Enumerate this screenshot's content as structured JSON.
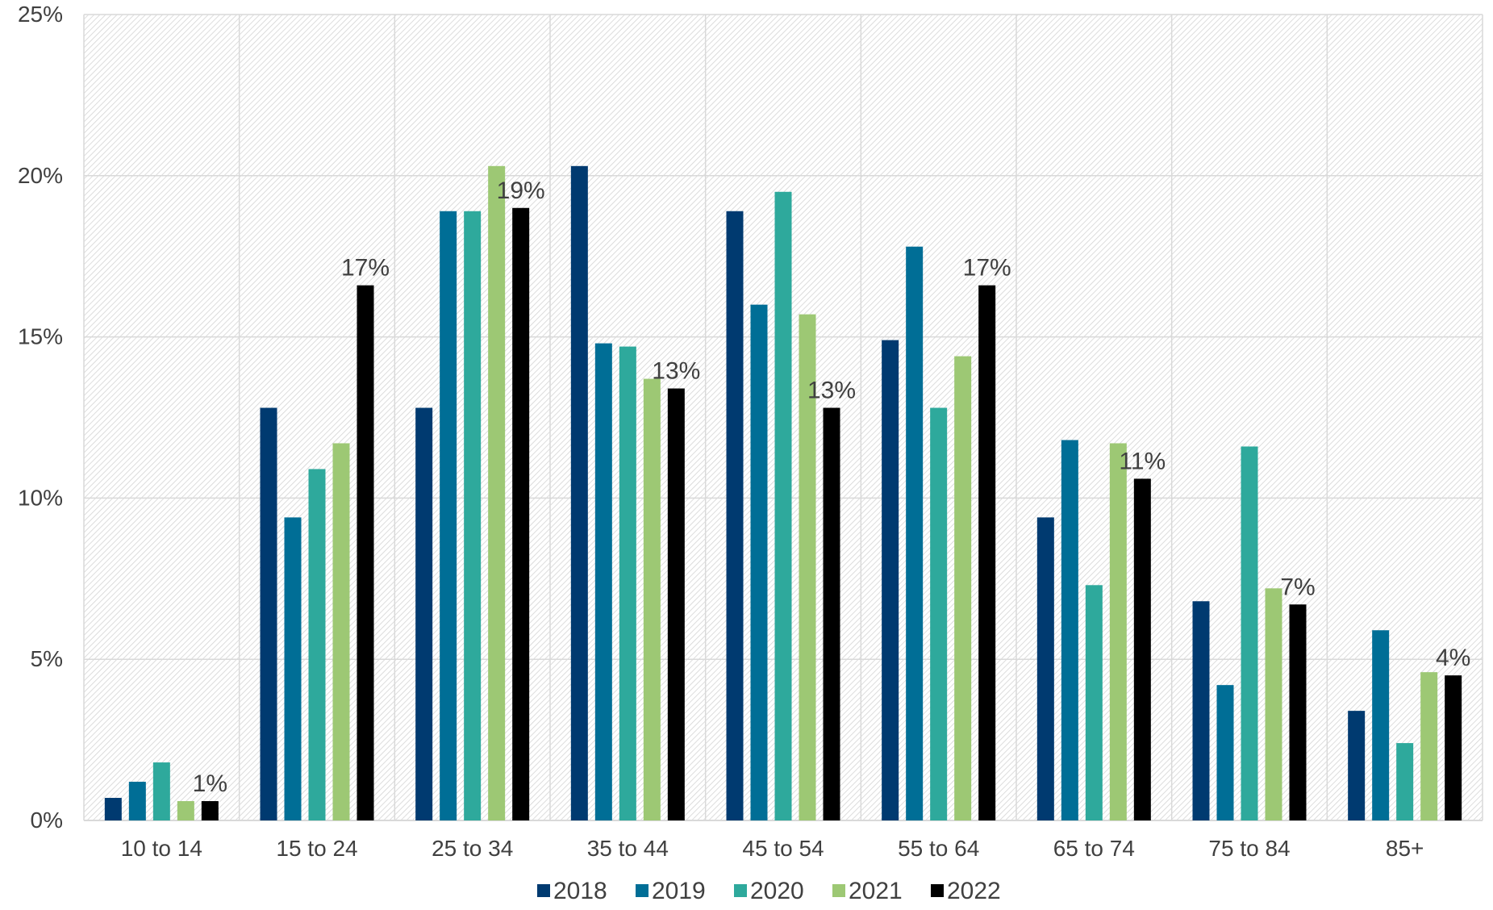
{
  "chart_data": {
    "type": "bar",
    "title": "",
    "xlabel": "",
    "ylabel": "",
    "ylim": [
      0,
      25
    ],
    "y_ticks": [
      "0%",
      "5%",
      "10%",
      "15%",
      "20%",
      "25%"
    ],
    "y_tick_values": [
      0,
      5,
      10,
      15,
      20,
      25
    ],
    "grid": true,
    "legend_position": "bottom",
    "categories": [
      "10 to 14",
      "15 to 24",
      "25 to 34",
      "35 to 44",
      "45 to 54",
      "55 to 64",
      "65 to 74",
      "75 to 84",
      "85+"
    ],
    "series": [
      {
        "name": "2018",
        "color": "#003A70",
        "values": [
          0.7,
          12.8,
          12.8,
          20.3,
          18.9,
          14.9,
          9.4,
          6.8,
          3.4
        ]
      },
      {
        "name": "2019",
        "color": "#006E96",
        "values": [
          1.2,
          9.4,
          18.9,
          14.8,
          16.0,
          17.8,
          11.8,
          4.2,
          5.9
        ]
      },
      {
        "name": "2020",
        "color": "#2EA99C",
        "values": [
          1.8,
          10.9,
          18.9,
          14.7,
          19.5,
          12.8,
          7.3,
          11.6,
          2.4
        ]
      },
      {
        "name": "2021",
        "color": "#9DC874",
        "values": [
          0.6,
          11.7,
          20.3,
          13.7,
          15.7,
          14.4,
          11.7,
          7.2,
          4.6
        ]
      },
      {
        "name": "2022",
        "color": "#000000",
        "values": [
          0.6,
          16.6,
          19.0,
          13.4,
          12.8,
          16.6,
          10.6,
          6.7,
          4.5
        ]
      }
    ],
    "data_labels_series": "2022",
    "data_labels": [
      "1%",
      "17%",
      "19%",
      "13%",
      "13%",
      "17%",
      "11%",
      "7%",
      "4%"
    ]
  }
}
